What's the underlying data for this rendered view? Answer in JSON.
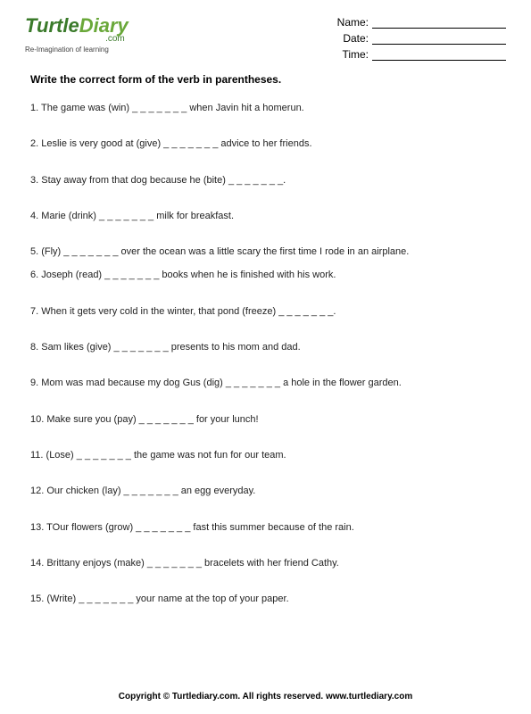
{
  "logo": {
    "word1": "Turtle",
    "word2": "Diary",
    "suffix": ".com",
    "tagline": "Re-Imagination of learning"
  },
  "fields": {
    "name_label": "Name:",
    "date_label": "Date:",
    "time_label": "Time:"
  },
  "instruction": "Write the correct form of the verb in parentheses.",
  "blank": "_ _ _ _ _ _ _",
  "questions": [
    "1. The game was (win) _ _ _ _ _ _ _ when Javin hit a homerun.",
    "2. Leslie is very good at (give) _ _ _ _ _ _ _ advice to her friends.",
    "3. Stay away from that dog because he (bite) _ _ _ _ _ _ _.",
    "4. Marie (drink) _ _ _ _ _ _ _ milk for breakfast.",
    "5. (Fly) _ _ _ _ _ _ _ over the ocean was a little scary the first time I rode in an airplane.",
    "6. Joseph (read) _ _ _ _ _ _ _ books when he is finished with his work.",
    "7. When it gets very cold in the winter, that pond (freeze) _ _ _ _ _ _ _.",
    "8. Sam likes (give) _ _ _ _ _ _ _ presents to his mom and dad.",
    "9. Mom was mad because my dog Gus (dig) _ _ _ _ _ _ _ a hole in the flower garden.",
    "10. Make sure you (pay) _ _ _ _ _ _ _ for your lunch!",
    "11.  (Lose) _ _ _ _ _ _ _ the game was not fun for our team.",
    "12. Our chicken (lay) _ _ _ _ _ _ _ an egg everyday.",
    "13. TOur flowers (grow) _ _ _ _ _ _ _ fast this summer because of the rain.",
    "14. Brittany enjoys (make) _ _ _ _ _ _ _ bracelets with her friend Cathy.",
    "15. (Write) _ _ _ _ _ _ _ your name at the top of your paper."
  ],
  "footer": "Copyright © Turtlediary.com. All rights reserved. www.turtlediary.com"
}
